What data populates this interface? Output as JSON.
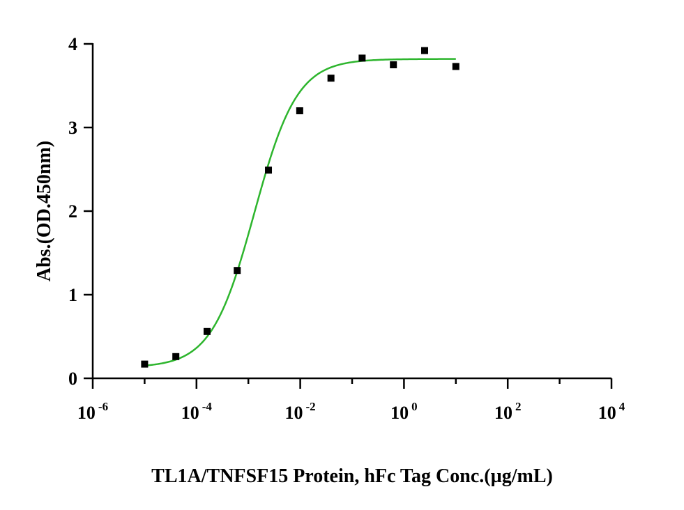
{
  "chart_data": {
    "type": "scatter",
    "title": "",
    "xlabel": "TL1A/TNFSF15 Protein, hFc Tag Conc.(µg/mL)",
    "ylabel": "Abs.(OD.450nm)",
    "xscale": "log",
    "xlim": [
      1e-06,
      10000
    ],
    "ylim": [
      0,
      4
    ],
    "grid": false,
    "x_ticks": [
      {
        "base": "10",
        "exp": "-6",
        "value": 1e-06
      },
      {
        "base": "10",
        "exp": "-4",
        "value": 0.0001
      },
      {
        "base": "10",
        "exp": "-2",
        "value": 0.01
      },
      {
        "base": "10",
        "exp": "0",
        "value": 1
      },
      {
        "base": "10",
        "exp": "2",
        "value": 100
      },
      {
        "base": "10",
        "exp": "4",
        "value": 10000
      }
    ],
    "y_ticks": [
      {
        "label": "0",
        "value": 0
      },
      {
        "label": "1",
        "value": 1
      },
      {
        "label": "2",
        "value": 2
      },
      {
        "label": "3",
        "value": 3
      },
      {
        "label": "4",
        "value": 4
      }
    ],
    "series": [
      {
        "marker": "square",
        "color": "#000000",
        "x": [
          1e-05,
          4e-05,
          0.00016,
          0.00061,
          0.00244,
          0.00977,
          0.0391,
          0.156,
          0.625,
          2.5,
          10
        ],
        "y": [
          0.17,
          0.26,
          0.56,
          1.29,
          2.49,
          3.2,
          3.59,
          3.83,
          3.75,
          3.92,
          3.73
        ]
      }
    ],
    "fit_curve": {
      "model": "4PL",
      "color": "#2db52d",
      "bottom": 0.13,
      "top": 3.82,
      "ec50": 0.0013,
      "hill": 1.05,
      "x_range": [
        1e-05,
        10
      ]
    }
  }
}
